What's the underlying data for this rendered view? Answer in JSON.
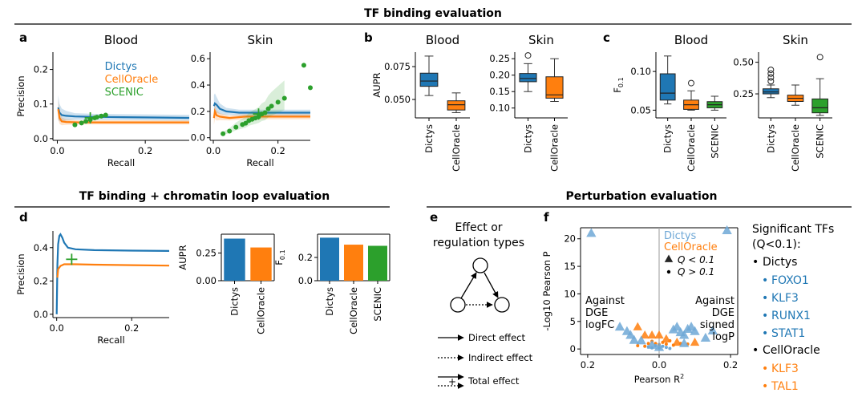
{
  "sections": {
    "top": "TF binding evaluation",
    "mid_left": "TF binding + chromatin loop evaluation",
    "mid_right": "Perturbation evaluation"
  },
  "panel_labels": {
    "a": "a",
    "b": "b",
    "c": "c",
    "d": "d",
    "e": "e",
    "f": "f"
  },
  "colors": {
    "dictys": "#1f77b4",
    "celloracle": "#ff7f0e",
    "scenic": "#2ca02c",
    "dictys_light": "#6fa8d6"
  },
  "chart_data": [
    {
      "id": "a-blood",
      "type": "line",
      "title": "Blood",
      "xlabel": "Recall",
      "ylabel": "Precision",
      "xlim": [
        -0.01,
        0.3
      ],
      "ylim": [
        -0.005,
        0.25
      ],
      "xticks": [
        "0.0",
        "0.2"
      ],
      "yticks": [
        "0.0",
        "0.1",
        "0.2"
      ],
      "legend": [
        "Dictys",
        "CellOracle",
        "SCENIC"
      ],
      "series": [
        {
          "name": "Dictys",
          "x": [
            0.002,
            0.005,
            0.01,
            0.02,
            0.04,
            0.08,
            0.15,
            0.22,
            0.3
          ],
          "y": [
            0.09,
            0.075,
            0.068,
            0.066,
            0.064,
            0.063,
            0.062,
            0.061,
            0.06
          ]
        },
        {
          "name": "CellOracle",
          "x": [
            0.002,
            0.005,
            0.01,
            0.02,
            0.05,
            0.1,
            0.2,
            0.3
          ],
          "y": [
            0.085,
            0.06,
            0.05,
            0.048,
            0.047,
            0.047,
            0.047,
            0.047
          ]
        }
      ],
      "scenic_points": {
        "x": [
          0.04,
          0.055,
          0.065,
          0.075,
          0.085,
          0.09,
          0.1,
          0.11
        ],
        "y": [
          0.04,
          0.045,
          0.05,
          0.055,
          0.06,
          0.062,
          0.065,
          0.068
        ]
      },
      "marker": {
        "x": 0.075,
        "y": 0.06
      }
    },
    {
      "id": "a-skin",
      "type": "line",
      "title": "Skin",
      "xlabel": "Recall",
      "xlim": [
        -0.01,
        0.3
      ],
      "ylim": [
        -0.02,
        0.65
      ],
      "xticks": [
        "0.0",
        "0.2"
      ],
      "yticks": [
        "0.0",
        "0.2",
        "0.4",
        "0.6"
      ],
      "series": [
        {
          "name": "Dictys",
          "x": [
            0.002,
            0.005,
            0.01,
            0.02,
            0.04,
            0.08,
            0.15,
            0.22,
            0.3
          ],
          "y": [
            0.24,
            0.26,
            0.25,
            0.22,
            0.2,
            0.19,
            0.19,
            0.19,
            0.19
          ]
        },
        {
          "name": "CellOracle",
          "x": [
            0.002,
            0.005,
            0.01,
            0.02,
            0.05,
            0.1,
            0.2,
            0.3
          ],
          "y": [
            0.15,
            0.2,
            0.17,
            0.16,
            0.15,
            0.16,
            0.16,
            0.16
          ]
        }
      ],
      "scenic_points": {
        "x": [
          0.03,
          0.05,
          0.07,
          0.09,
          0.1,
          0.11,
          0.12,
          0.13,
          0.14,
          0.15,
          0.16,
          0.17,
          0.18,
          0.2,
          0.22,
          0.28,
          0.3
        ],
        "y": [
          0.03,
          0.05,
          0.08,
          0.1,
          0.11,
          0.13,
          0.14,
          0.15,
          0.16,
          0.18,
          0.19,
          0.22,
          0.24,
          0.27,
          0.3,
          0.55,
          0.38
        ]
      },
      "marker": {
        "x": 0.14,
        "y": 0.18
      }
    },
    {
      "id": "b-blood",
      "type": "box",
      "title": "Blood",
      "ylabel": "AUPR",
      "ylim": [
        0.036,
        0.086
      ],
      "yticks": [
        "0.050",
        "0.075"
      ],
      "categories": [
        "Dictys",
        "CellOracle"
      ],
      "boxes": [
        {
          "min": 0.053,
          "q1": 0.06,
          "median": 0.064,
          "q3": 0.07,
          "max": 0.083
        },
        {
          "min": 0.04,
          "q1": 0.042,
          "median": 0.046,
          "q3": 0.049,
          "max": 0.055
        }
      ]
    },
    {
      "id": "b-skin",
      "type": "box",
      "title": "Skin",
      "ylim": [
        0.07,
        0.27
      ],
      "yticks": [
        "0.10",
        "0.15",
        "0.20",
        "0.25"
      ],
      "categories": [
        "Dictys",
        "CellOracle"
      ],
      "boxes": [
        {
          "min": 0.15,
          "q1": 0.18,
          "median": 0.19,
          "q3": 0.205,
          "max": 0.235,
          "outliers": [
            0.26
          ]
        },
        {
          "min": 0.12,
          "q1": 0.13,
          "median": 0.14,
          "q3": 0.195,
          "max": 0.25
        }
      ]
    },
    {
      "id": "c-blood",
      "type": "box",
      "title": "Blood",
      "ylabel": "F0.1",
      "ylim": [
        0.04,
        0.125
      ],
      "yticks": [
        "0.05",
        "0.10"
      ],
      "categories": [
        "Dictys",
        "CellOracle",
        "SCENIC"
      ],
      "boxes": [
        {
          "min": 0.058,
          "q1": 0.063,
          "median": 0.072,
          "q3": 0.097,
          "max": 0.12
        },
        {
          "min": 0.05,
          "q1": 0.051,
          "median": 0.057,
          "q3": 0.063,
          "max": 0.075,
          "outliers": [
            0.085
          ]
        },
        {
          "min": 0.05,
          "q1": 0.053,
          "median": 0.057,
          "q3": 0.061,
          "max": 0.068
        }
      ]
    },
    {
      "id": "c-skin",
      "type": "box",
      "title": "Skin",
      "ylim": [
        0.06,
        0.58
      ],
      "yticks": [
        "0.25",
        "0.50"
      ],
      "categories": [
        "Dictys",
        "CellOracle",
        "SCENIC"
      ],
      "boxes": [
        {
          "min": 0.22,
          "q1": 0.25,
          "median": 0.265,
          "q3": 0.29,
          "max": 0.32,
          "outliers": [
            0.35,
            0.38,
            0.41,
            0.44
          ]
        },
        {
          "min": 0.16,
          "q1": 0.19,
          "median": 0.215,
          "q3": 0.24,
          "max": 0.32
        },
        {
          "min": 0.08,
          "q1": 0.1,
          "median": 0.14,
          "q3": 0.21,
          "max": 0.37,
          "outliers": [
            0.54
          ]
        }
      ]
    },
    {
      "id": "d-line",
      "type": "line",
      "xlabel": "Recall",
      "ylabel": "Precision",
      "xlim": [
        -0.01,
        0.3
      ],
      "ylim": [
        -0.02,
        0.5
      ],
      "xticks": [
        "0.0",
        "0.2"
      ],
      "yticks": [
        "0.0",
        "0.2",
        "0.4"
      ],
      "series": [
        {
          "name": "Dictys",
          "x": [
            0.0,
            0.002,
            0.004,
            0.007,
            0.01,
            0.015,
            0.02,
            0.03,
            0.05,
            0.1,
            0.2,
            0.3
          ],
          "y": [
            0.0,
            0.3,
            0.42,
            0.47,
            0.48,
            0.46,
            0.43,
            0.4,
            0.39,
            0.385,
            0.382,
            0.38
          ]
        },
        {
          "name": "CellOracle",
          "x": [
            0.002,
            0.004,
            0.01,
            0.02,
            0.05,
            0.1,
            0.2,
            0.3
          ],
          "y": [
            0.22,
            0.27,
            0.29,
            0.3,
            0.3,
            0.298,
            0.295,
            0.292
          ]
        }
      ],
      "marker": {
        "x": 0.04,
        "y": 0.33
      }
    },
    {
      "id": "d-aupr",
      "type": "bar",
      "ylabel": "AUPR",
      "ylim": [
        0,
        0.42
      ],
      "yticks": [
        "0.00",
        "0.25"
      ],
      "categories": [
        "Dictys",
        "CellOracle"
      ],
      "values": [
        0.38,
        0.3
      ]
    },
    {
      "id": "d-f",
      "type": "bar",
      "ylabel": "F0.1",
      "ylim": [
        0,
        0.4
      ],
      "yticks": [
        "0.0",
        "0.2"
      ],
      "categories": [
        "Dictys",
        "CellOracle",
        "SCENIC"
      ],
      "values": [
        0.37,
        0.31,
        0.3
      ]
    },
    {
      "id": "f-volcano",
      "type": "scatter",
      "xlabel": "Pearson R",
      "xlabel_sup": "2",
      "ylabel": "-Log10 Pearson P",
      "xlim": [
        -0.22,
        0.22
      ],
      "ylim": [
        -1,
        22
      ],
      "xticks": [
        "0.2",
        "0.0",
        "0.2"
      ],
      "yticks": [
        "0",
        "5",
        "10",
        "15",
        "20"
      ],
      "annotations": {
        "left": [
          "Against",
          "DGE",
          "logFC"
        ],
        "right": [
          "Against",
          "DGE",
          "signed",
          "logP"
        ]
      },
      "legend": {
        "dictys": "Dictys",
        "celloracle": "CellOracle",
        "sig": "Q < 0.1",
        "nonsig": "Q > 0.1"
      },
      "triangles_dictys": [
        [
          -0.19,
          21
        ],
        [
          0.19,
          21.5
        ],
        [
          -0.11,
          4
        ],
        [
          -0.09,
          3.2
        ],
        [
          -0.08,
          2.5
        ],
        [
          -0.07,
          1.6
        ],
        [
          -0.05,
          1.5
        ],
        [
          -0.02,
          0.7
        ],
        [
          0.0,
          0.3
        ],
        [
          0.04,
          3.5
        ],
        [
          0.05,
          4
        ],
        [
          0.06,
          3
        ],
        [
          0.07,
          2.5
        ],
        [
          0.08,
          3.6
        ],
        [
          0.09,
          4
        ],
        [
          0.1,
          3.2
        ],
        [
          0.13,
          2
        ],
        [
          0.15,
          3.3
        ],
        [
          0.07,
          1
        ]
      ],
      "triangles_celloracle": [
        [
          -0.06,
          4
        ],
        [
          -0.04,
          2.5
        ],
        [
          -0.02,
          2.5
        ],
        [
          0.0,
          2.5
        ],
        [
          0.02,
          1.8
        ],
        [
          0.05,
          1.2
        ],
        [
          0.1,
          1.2
        ]
      ],
      "dots_dictys": [
        [
          -0.03,
          0.4
        ],
        [
          -0.02,
          0.2
        ],
        [
          -0.01,
          0.6
        ],
        [
          0.0,
          0.2
        ],
        [
          0.01,
          0.5
        ],
        [
          0.02,
          0.3
        ],
        [
          0.03,
          0.1
        ]
      ],
      "dots_celloracle": [
        [
          -0.04,
          0.5
        ],
        [
          -0.03,
          1.0
        ],
        [
          -0.02,
          1.4
        ],
        [
          -0.01,
          1.0
        ],
        [
          0.0,
          0.8
        ],
        [
          0.01,
          1.2
        ],
        [
          0.02,
          0.9
        ],
        [
          0.03,
          1.5
        ],
        [
          0.04,
          0.7
        ],
        [
          0.06,
          1.0
        ],
        [
          -0.06,
          0.6
        ],
        [
          0.08,
          0.9
        ]
      ]
    }
  ],
  "panel_e": {
    "title_line1": "Effect or",
    "title_line2": "regulation types",
    "legend": [
      "Direct effect",
      "Indirect effect",
      "Total effect"
    ],
    "total_symbol": "+"
  },
  "sig_tfs": {
    "title_line1": "Significant TFs",
    "title_line2": "(Q<0.1):",
    "dictys_label": "Dictys",
    "dictys": [
      "FOXO1",
      "KLF3",
      "RUNX1",
      "STAT1"
    ],
    "celloracle_label": "CellOracle",
    "celloracle": [
      "KLF3",
      "TAL1"
    ]
  }
}
